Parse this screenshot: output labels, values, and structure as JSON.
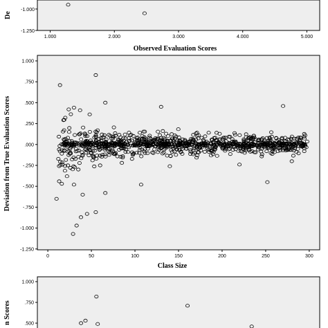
{
  "chart_data": [
    {
      "type": "scatter",
      "ylabel": "Deviation from True Evaluation Scores",
      "ylabel_visible": "De",
      "xlabel": "Observed Evaluation Scores",
      "x_ticks": [
        "1.000",
        "2.000",
        "3.000",
        "4.000",
        "5.000"
      ],
      "y_ticks": [
        "-1.000",
        "-1.250"
      ],
      "xlim": [
        0.8,
        5.2
      ],
      "ylim": [
        -1.25,
        -0.9
      ],
      "grid": false,
      "points": [
        [
          1.28,
          -0.95
        ],
        [
          2.47,
          -1.05
        ]
      ]
    },
    {
      "type": "scatter",
      "ylabel": "Deviation from True Evaluation Scores",
      "xlabel": "Class Size",
      "x_ticks": [
        "0",
        "50",
        "100",
        "150",
        "200",
        "250",
        "300"
      ],
      "y_ticks": [
        "1.000",
        ".750",
        ".500",
        ".250",
        ".000",
        "-.250",
        "-.500",
        "-.750",
        "-1.000",
        "-1.250"
      ],
      "xlim": [
        -12,
        312
      ],
      "ylim": [
        -1.25,
        1.0
      ],
      "grid": false,
      "outliers": [
        [
          14,
          0.71
        ],
        [
          55,
          0.83
        ],
        [
          66,
          0.5
        ],
        [
          37,
          0.41
        ],
        [
          30,
          0.44
        ],
        [
          24,
          0.42
        ],
        [
          270,
          0.46
        ],
        [
          130,
          0.45
        ],
        [
          20,
          0.32
        ],
        [
          48,
          0.36
        ],
        [
          10,
          -0.65
        ],
        [
          13,
          -0.44
        ],
        [
          16,
          -0.47
        ],
        [
          22,
          -0.38
        ],
        [
          30,
          -0.48
        ],
        [
          40,
          -0.6
        ],
        [
          38,
          -0.87
        ],
        [
          45,
          -0.83
        ],
        [
          33,
          -0.97
        ],
        [
          29,
          -1.07
        ],
        [
          55,
          -0.81
        ],
        [
          66,
          -0.58
        ],
        [
          107,
          -0.48
        ],
        [
          252,
          -0.45
        ],
        [
          23,
          -0.25
        ],
        [
          35,
          -0.3
        ],
        [
          60,
          -0.25
        ],
        [
          85,
          -0.22
        ],
        [
          140,
          -0.26
        ],
        [
          220,
          -0.24
        ],
        [
          280,
          -0.2
        ]
      ]
    },
    {
      "type": "scatter",
      "ylabel": "Deviation from True Evaluation Scores",
      "ylabel_visible": "n Scores",
      "y_ticks": [
        "1.000",
        ".750",
        ".500"
      ],
      "ylim": [
        0.45,
        1.03
      ],
      "grid": false,
      "points": [
        [
          1.72,
          0.82
        ],
        [
          3.14,
          0.71
        ],
        [
          1.55,
          0.53
        ],
        [
          1.48,
          0.5
        ],
        [
          1.74,
          0.49
        ],
        [
          4.14,
          0.46
        ]
      ]
    }
  ]
}
